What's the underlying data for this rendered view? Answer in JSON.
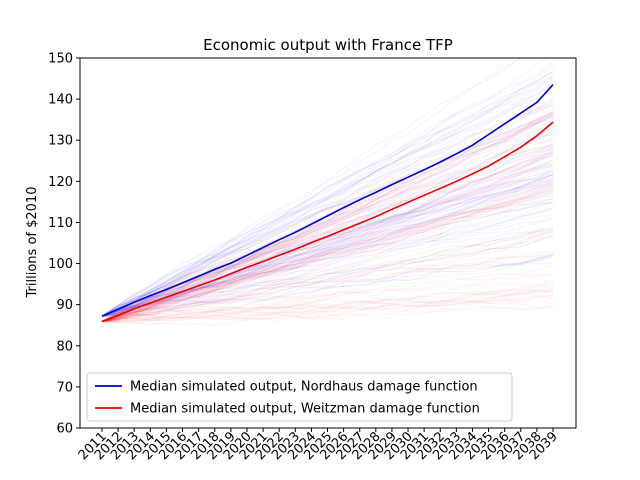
{
  "chart_data": {
    "type": "line",
    "title": "Economic output with France TFP",
    "xlabel": "",
    "ylabel": "Trillions of $2010",
    "ylim": [
      60,
      150
    ],
    "yticks": [
      60,
      70,
      80,
      90,
      100,
      110,
      120,
      130,
      140,
      150
    ],
    "x": [
      "2011",
      "2012",
      "2013",
      "2014",
      "2015",
      "2016",
      "2017",
      "2018",
      "2019",
      "2020",
      "2021",
      "2022",
      "2023",
      "2024",
      "2025",
      "2026",
      "2027",
      "2028",
      "2029",
      "2030",
      "2031",
      "2032",
      "2033",
      "2034",
      "2035",
      "2036",
      "2037",
      "2038",
      "2039"
    ],
    "grid": false,
    "legend_position": "lower-left",
    "series": [
      {
        "name": "Median simulated output, Nordhaus damage function",
        "color": "#0000cc",
        "values": [
          87.2,
          88.9,
          90.6,
          92.2,
          93.7,
          95.3,
          96.9,
          98.6,
          100.1,
          102.0,
          103.9,
          105.8,
          107.6,
          109.6,
          111.6,
          113.6,
          115.5,
          117.3,
          119.2,
          121.0,
          122.8,
          124.7,
          126.7,
          128.8,
          131.4,
          134.0,
          136.6,
          139.2,
          143.5
        ]
      },
      {
        "name": "Median simulated output, Weitzman damage function",
        "color": "#ee0000",
        "values": [
          85.9,
          87.4,
          89.0,
          90.4,
          91.8,
          93.2,
          94.6,
          96.0,
          97.5,
          99.1,
          100.5,
          102.0,
          103.5,
          105.1,
          106.6,
          108.2,
          109.8,
          111.4,
          113.2,
          114.9,
          116.6,
          118.3,
          120.0,
          121.8,
          123.7,
          126.0,
          128.3,
          131.1,
          134.4
        ]
      }
    ],
    "simulation_bands": [
      {
        "color": "#0000ff",
        "start": 87.2,
        "growth_min": 0.35,
        "growth_max": 2.35
      },
      {
        "color": "#ff0000",
        "start": 85.9,
        "growth_min": 0.0,
        "growth_max": 2.0
      }
    ]
  }
}
